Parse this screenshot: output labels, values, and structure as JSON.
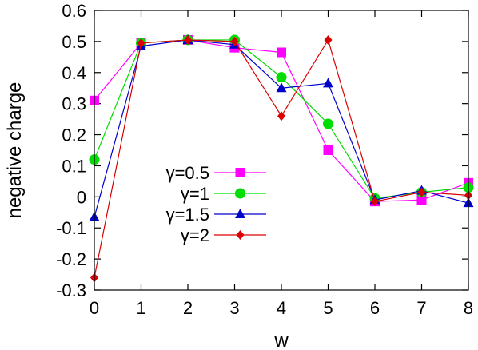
{
  "chart_data": {
    "type": "line",
    "xlabel": "w",
    "ylabel": "negative charge",
    "xlim": [
      0,
      8
    ],
    "ylim": [
      -0.3,
      0.6
    ],
    "xticks": [
      0,
      1,
      2,
      3,
      4,
      5,
      6,
      7,
      8
    ],
    "yticks": [
      -0.3,
      -0.2,
      -0.1,
      0,
      0.1,
      0.2,
      0.3,
      0.4,
      0.5,
      0.6
    ],
    "x": [
      0,
      1,
      2,
      3,
      4,
      5,
      6,
      7,
      8
    ],
    "grid": false,
    "legend_position": "left",
    "series": [
      {
        "name": "γ=0.5",
        "color": "#ff00ff",
        "marker": "square",
        "values": [
          0.31,
          0.495,
          0.505,
          0.48,
          0.465,
          0.15,
          -0.015,
          -0.01,
          0.045
        ]
      },
      {
        "name": "γ=1",
        "color": "#00dd00",
        "marker": "circle",
        "values": [
          0.12,
          0.495,
          0.505,
          0.505,
          0.385,
          0.235,
          -0.005,
          0.015,
          0.03
        ]
      },
      {
        "name": "γ=1.5",
        "color": "#0000cc",
        "marker": "triangle",
        "values": [
          -0.065,
          0.485,
          0.505,
          0.49,
          0.35,
          0.365,
          -0.01,
          0.02,
          -0.02
        ]
      },
      {
        "name": "γ=2",
        "color": "#dd0000",
        "marker": "diamond",
        "values": [
          -0.26,
          0.495,
          0.505,
          0.5,
          0.26,
          0.505,
          -0.015,
          0.015,
          0.005
        ]
      }
    ]
  }
}
